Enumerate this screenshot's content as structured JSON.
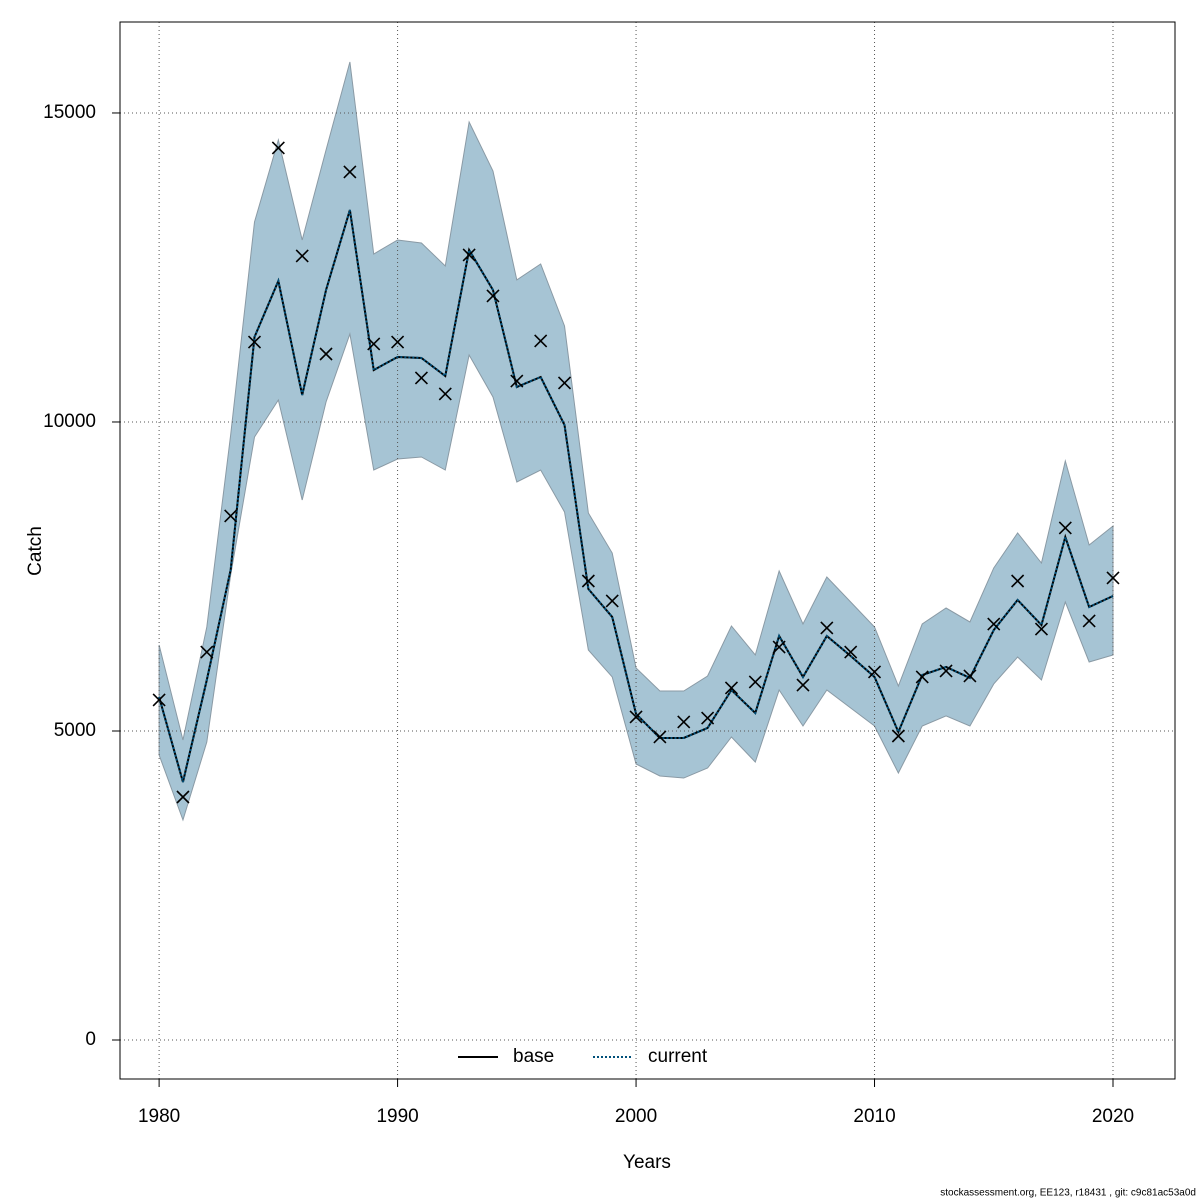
{
  "chart_data": {
    "type": "line",
    "xlabel": "Years",
    "ylabel": "Catch",
    "footer": "stockassessment.org, EE123, r18431 , git: c9c81ac53a0d",
    "x": [
      1980,
      1981,
      1982,
      1983,
      1984,
      1985,
      1986,
      1987,
      1988,
      1989,
      1990,
      1991,
      1992,
      1993,
      1994,
      1995,
      1996,
      1997,
      1998,
      1999,
      2000,
      2001,
      2002,
      2003,
      2004,
      2005,
      2006,
      2007,
      2008,
      2009,
      2010,
      2011,
      2012,
      2013,
      2014,
      2015,
      2016,
      2017,
      2018,
      2019,
      2020
    ],
    "series": [
      {
        "name": "base",
        "color": "#000000",
        "dash": "solid",
        "values": [
          5550,
          4175,
          5825,
          7605,
          11375,
          12282,
          10437,
          12136,
          13430,
          10841,
          11052,
          11036,
          10744,
          12783,
          12136,
          10566,
          10728,
          9951,
          7298,
          6845,
          5275,
          4887,
          4887,
          5049,
          5663,
          5291,
          6537,
          5874,
          6537,
          6214,
          5874,
          4984,
          5906,
          6036,
          5858,
          6634,
          7120,
          6715,
          8139,
          7006,
          7184
        ]
      },
      {
        "name": "current",
        "color": "#00507a",
        "dash": "dotted",
        "values": [
          5550,
          4175,
          5825,
          7605,
          11375,
          12282,
          10437,
          12136,
          13430,
          10841,
          11052,
          11036,
          10744,
          12783,
          12136,
          10566,
          10728,
          9951,
          7298,
          6845,
          5275,
          4887,
          4887,
          5049,
          5663,
          5291,
          6537,
          5874,
          6537,
          6214,
          5874,
          4984,
          5906,
          6036,
          5858,
          6634,
          7120,
          6715,
          8139,
          7006,
          7184
        ]
      }
    ],
    "band": {
      "color": "#a6c4d4",
      "upper": [
        6392,
        4854,
        6683,
        9790,
        13236,
        14563,
        12945,
        14401,
        15825,
        12718,
        12945,
        12896,
        12524,
        14854,
        14061,
        12298,
        12557,
        11553,
        8528,
        7880,
        6019,
        5647,
        5647,
        5890,
        6699,
        6230,
        7589,
        6731,
        7492,
        7087,
        6683,
        5728,
        6731,
        6990,
        6764,
        7638,
        8204,
        7718,
        9369,
        8010,
        8317
      ],
      "lower": [
        4612,
        3560,
        4822,
        7524,
        9757,
        10356,
        8738,
        10324,
        11424,
        9223,
        9401,
        9434,
        9223,
        11084,
        10405,
        9029,
        9223,
        8544,
        6311,
        5874,
        4466,
        4272,
        4239,
        4401,
        4903,
        4498,
        5663,
        5081,
        5663,
        5372,
        5081,
        4320,
        5081,
        5243,
        5081,
        5761,
        6197,
        5825,
        7087,
        6117,
        6230
      ]
    },
    "observed": {
      "color": "#000000",
      "values": [
        5502,
        3932,
        6278,
        8479,
        11294,
        14434,
        12686,
        11100,
        14045,
        11262,
        11294,
        10712,
        10453,
        12702,
        12039,
        10663,
        11311,
        10631,
        7427,
        7104,
        5227,
        4903,
        5146,
        5210,
        5696,
        5793,
        6359,
        5744,
        6667,
        6278,
        5955,
        4919,
        5874,
        5971,
        5890,
        6731,
        7427,
        6650,
        8285,
        6780,
        7476
      ]
    },
    "xlim": [
      1978.36,
      2022.6
    ],
    "ylim": [
      -631,
      16472
    ],
    "xticks": [
      1980,
      1990,
      2000,
      2010,
      2020
    ],
    "yticks": [
      0,
      5000,
      10000,
      15000
    ],
    "grid": true,
    "legend": "bottom"
  }
}
